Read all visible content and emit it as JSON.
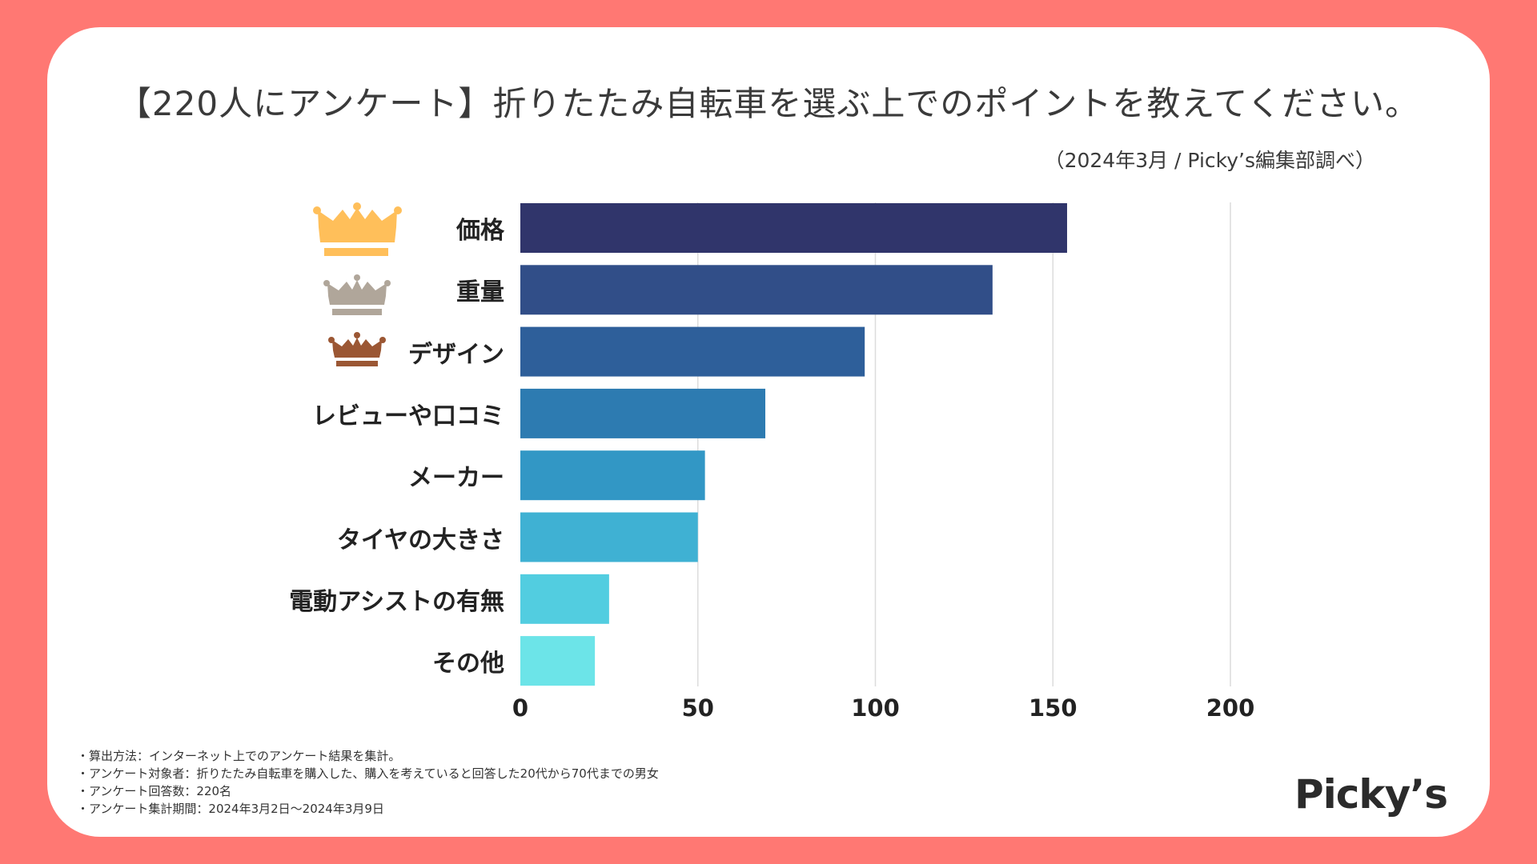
{
  "title": "【220人にアンケート】折りたたみ自転車を選ぶ上でのポイントを教えてください。",
  "source": "（2024年3月 / Picky’s編集部調べ）",
  "logo_text": "Picky’s",
  "notes": [
    "・算出方法：インターネット上でのアンケート結果を集計。",
    "・アンケート対象者：折りたたみ自転車を購入した、購入を考えていると回答した20代から70代までの男女",
    "・アンケート回答数：220名",
    "・アンケート集計期間：2024年3月2日〜2024年3月9日"
  ],
  "colors": {
    "background": "#ff7873",
    "card": "#ffffff",
    "crown_gold": "#ffbf5a",
    "crown_silver": "#b0a69a",
    "crown_bronze": "#9b5734"
  },
  "icons": [
    "crown-gold-icon",
    "crown-silver-icon",
    "crown-bronze-icon"
  ],
  "chart_data": {
    "type": "bar",
    "orientation": "horizontal",
    "categories": [
      "価格",
      "重量",
      "デザイン",
      "レビューや口コミ",
      "メーカー",
      "タイヤの大きさ",
      "電動アシストの有無",
      "その他"
    ],
    "values": [
      154,
      133,
      97,
      69,
      52,
      50,
      25,
      21
    ],
    "bar_colors": [
      "#30356b",
      "#314e88",
      "#2e5f9a",
      "#2d7bb1",
      "#3297c5",
      "#3fb1d3",
      "#52cde0",
      "#6ce4e8"
    ],
    "xlim": [
      0,
      200
    ],
    "xticks": [
      0,
      50,
      100,
      150,
      200
    ],
    "grid": true,
    "legend": "none"
  }
}
